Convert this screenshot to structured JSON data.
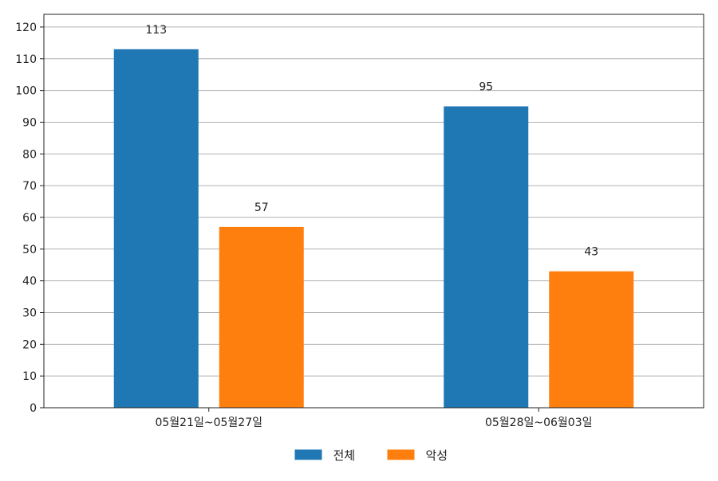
{
  "chart_data": {
    "type": "bar",
    "categories": [
      "05월21일~05월27일",
      "05월28일~06월03일"
    ],
    "series": [
      {
        "name": "전체",
        "color": "#1f77b4",
        "values": [
          113,
          95
        ]
      },
      {
        "name": "악성",
        "color": "#ff7f0e",
        "values": [
          57,
          43
        ]
      }
    ],
    "ylim": [
      0,
      124
    ],
    "yticks": [
      0,
      10,
      20,
      30,
      40,
      50,
      60,
      70,
      80,
      90,
      100,
      110,
      120
    ],
    "grid": true,
    "legend_position": "bottom-center",
    "data_labels": true
  }
}
